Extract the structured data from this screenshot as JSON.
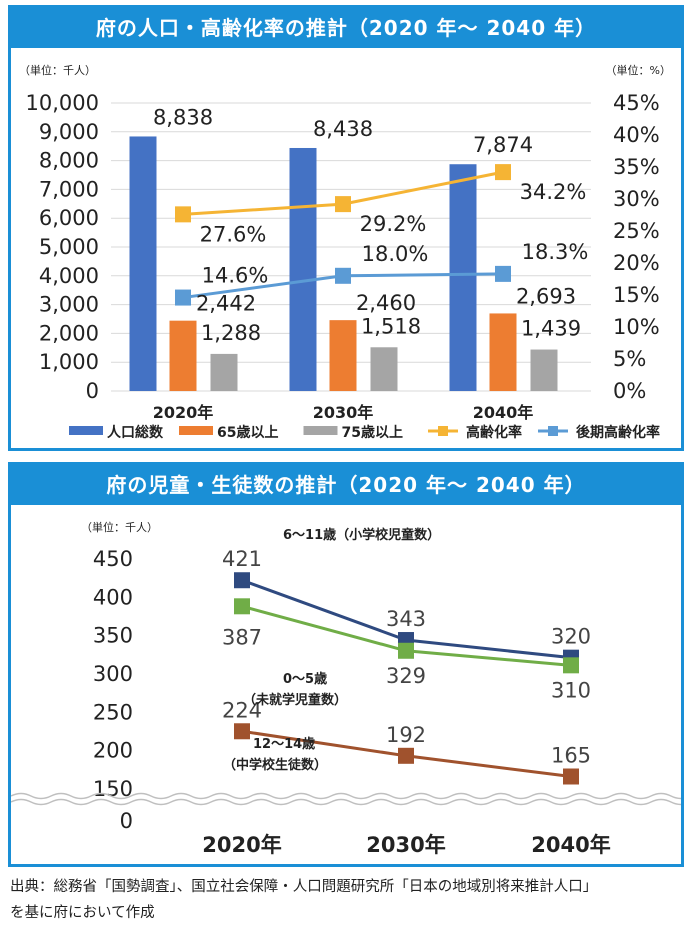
{
  "chart_data": [
    {
      "type": "bar",
      "title": "府の人口・高齢化率の推計（2020 年〜 2040 年）",
      "left_unit": "（単位：千人）",
      "right_unit": "（単位：%）",
      "categories": [
        "2020年",
        "2030年",
        "2040年"
      ],
      "ylim": [
        0,
        10000
      ],
      "yticks": [
        "0",
        "1,000",
        "2,000",
        "3,000",
        "4,000",
        "5,000",
        "6,000",
        "7,000",
        "8,000",
        "9,000",
        "10,000"
      ],
      "y2lim": [
        0,
        45
      ],
      "y2ticks": [
        "0%",
        "5%",
        "10%",
        "15%",
        "20%",
        "25%",
        "30%",
        "35%",
        "40%",
        "45%"
      ],
      "grid": true,
      "legend_position": "bottom",
      "series": [
        {
          "name": "人口総数",
          "type": "bar",
          "color": "#4472c4",
          "values": [
            8838,
            8438,
            7874
          ],
          "labels": [
            "8,838",
            "8,438",
            "7,874"
          ]
        },
        {
          "name": "65歳以上",
          "type": "bar",
          "color": "#ed7d31",
          "values": [
            2442,
            2460,
            2693
          ],
          "labels": [
            "2,442",
            "2,460",
            "2,693"
          ]
        },
        {
          "name": "75歳以上",
          "type": "bar",
          "color": "#a5a5a5",
          "values": [
            1288,
            1518,
            1439
          ],
          "labels": [
            "1,288",
            "1,518",
            "1,439"
          ]
        },
        {
          "name": "高齢化率",
          "type": "line",
          "axis": "right",
          "color": "#f5b434",
          "values": [
            27.6,
            29.2,
            34.2
          ],
          "labels": [
            "27.6%",
            "29.2%",
            "34.2%"
          ]
        },
        {
          "name": "後期高齢化率",
          "type": "line",
          "axis": "right",
          "color": "#5b9bd5",
          "values": [
            14.6,
            18.0,
            18.3
          ],
          "labels": [
            "14.6%",
            "18.0%",
            "18.3%"
          ]
        }
      ]
    },
    {
      "type": "line",
      "title": "府の児童・生徒数の推計（2020 年〜 2040 年）",
      "unit": "（単位：千人）",
      "categories": [
        "2020年",
        "2030年",
        "2040年"
      ],
      "ylim": [
        150,
        450
      ],
      "yticks": [
        "150",
        "200",
        "250",
        "300",
        "350",
        "400",
        "450"
      ],
      "axis_break_label": "0",
      "grid": false,
      "series": [
        {
          "name": "6〜11歳（小学校児童数）",
          "color": "#2f4a80",
          "values": [
            421,
            343,
            320
          ],
          "labels": [
            "421",
            "343",
            "320"
          ]
        },
        {
          "name_lines": [
            "0〜5歳",
            "（未就学児童数）"
          ],
          "color": "#70ad47",
          "values": [
            387,
            329,
            310
          ],
          "labels": [
            "387",
            "329",
            "310"
          ]
        },
        {
          "name_lines": [
            "12〜14歳",
            "（中学校生徒数）"
          ],
          "color": "#a0522d",
          "values": [
            224,
            192,
            165
          ],
          "labels": [
            "224",
            "192",
            "165"
          ]
        }
      ]
    }
  ],
  "source": {
    "line1": "出典：総務省「国勢調査」、国立社会保障・人口問題研究所「日本の地域別将来推計人口」",
    "line2": "を基に府において作成"
  }
}
